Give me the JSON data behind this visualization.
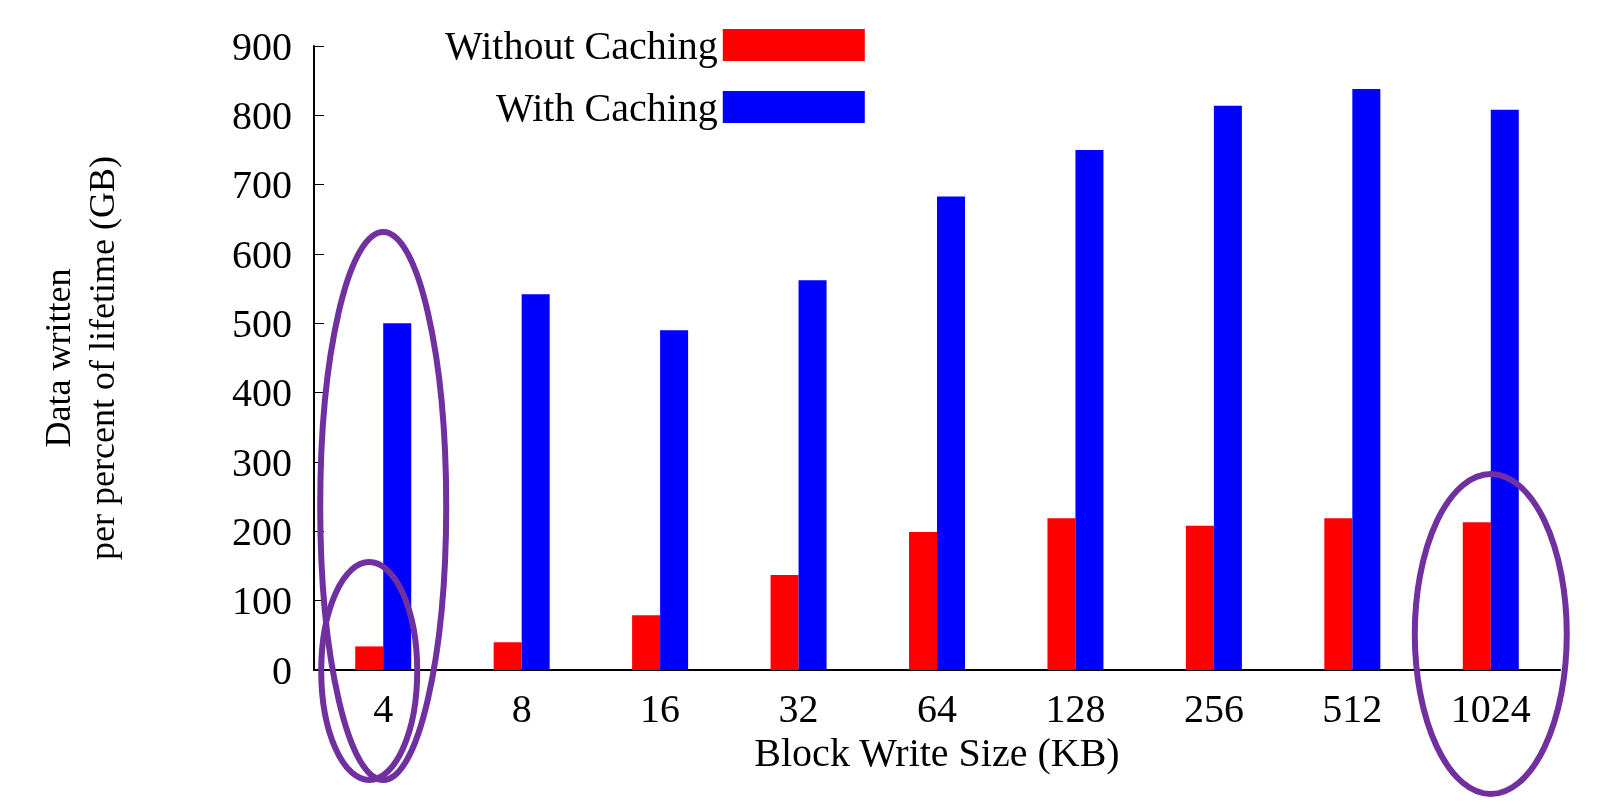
{
  "chart_data": {
    "type": "bar",
    "xlabel": "Block Write Size (KB)",
    "ylabel": "Data written\nper percent of lifetime (GB)",
    "categories": [
      "4",
      "8",
      "16",
      "32",
      "64",
      "128",
      "256",
      "512",
      "1024"
    ],
    "series": [
      {
        "name": "Without Caching",
        "color": "#ff0000",
        "values": [
          34,
          40,
          79,
          137,
          199,
          219,
          208,
          219,
          213
        ]
      },
      {
        "name": "With Caching",
        "color": "#0000ff",
        "values": [
          500,
          542,
          490,
          562,
          683,
          750,
          814,
          838,
          808
        ]
      }
    ],
    "ylim": [
      0,
      900
    ],
    "yticks": [
      0,
      100,
      200,
      300,
      400,
      500,
      600,
      700,
      800,
      900
    ],
    "grid": false,
    "legend": "top"
  }
}
